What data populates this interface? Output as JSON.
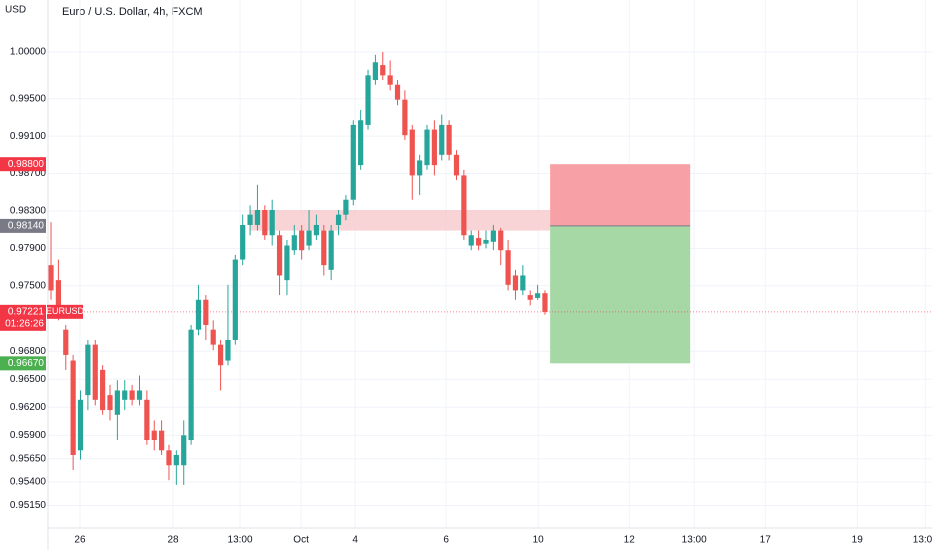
{
  "chart_data": {
    "type": "candlestick",
    "title": "Euro / U.S. Dollar, 4h, FXCM",
    "currency": "USD",
    "up_color": "#26a69a",
    "down_color": "#ef5350",
    "grid": true,
    "ylim": [
      0.94909,
      1.00556
    ],
    "yticks": [
      {
        "value": 1.0,
        "label": "1.00000"
      },
      {
        "value": 0.995,
        "label": "0.99500"
      },
      {
        "value": 0.991,
        "label": "0.99100"
      },
      {
        "value": 0.987,
        "label": "0.98700"
      },
      {
        "value": 0.983,
        "label": "0.98300"
      },
      {
        "value": 0.979,
        "label": "0.97900"
      },
      {
        "value": 0.975,
        "label": "0.97500"
      },
      {
        "value": 0.968,
        "label": "0.96800"
      },
      {
        "value": 0.965,
        "label": "0.96500"
      },
      {
        "value": 0.962,
        "label": "0.96200"
      },
      {
        "value": 0.959,
        "label": "0.95900"
      },
      {
        "value": 0.9565,
        "label": "0.95650"
      },
      {
        "value": 0.954,
        "label": "0.95400"
      },
      {
        "value": 0.9515,
        "label": "0.95150"
      }
    ],
    "xlim": [
      -0.41,
      119.5
    ],
    "xticks": [
      {
        "value": 3.93,
        "label": "26"
      },
      {
        "value": 16.55,
        "label": "28"
      },
      {
        "value": 25.64,
        "label": "13:00"
      },
      {
        "value": 33.92,
        "label": "Oct"
      },
      {
        "value": 41.25,
        "label": "4"
      },
      {
        "value": 53.59,
        "label": "6"
      },
      {
        "value": 66.08,
        "label": "10"
      },
      {
        "value": 78.43,
        "label": "12"
      },
      {
        "value": 87.24,
        "label": "13:00"
      },
      {
        "value": 96.88,
        "label": "17"
      },
      {
        "value": 109.36,
        "label": "19"
      },
      {
        "value": 118.59,
        "label": "13:00"
      }
    ],
    "open": [
      0.9772,
      0.9756,
      0.9703,
      0.967,
      0.9574,
      0.9633,
      0.9687,
      0.966,
      0.9633,
      0.9612,
      0.9628,
      0.9638,
      0.9628,
      0.9628,
      0.9595,
      0.9595,
      0.9574,
      0.9558,
      0.9558,
      0.9585,
      0.9703,
      0.9735,
      0.9703,
      0.9687,
      0.967,
      0.9692,
      0.9778,
      0.9815,
      0.9815,
      0.9831,
      0.9804,
      0.9804,
      0.9756,
      0.9788,
      0.9809,
      0.9793,
      0.9804,
      0.9809,
      0.9767,
      0.9815,
      0.9826,
      0.9842,
      0.9879,
      0.9922,
      0.997,
      0.9986,
      0.9975,
      0.9965,
      0.9949,
      0.9917,
      0.9868,
      0.9879,
      0.9917,
      0.989,
      0.9922,
      0.989,
      0.9868,
      0.9793,
      0.9801,
      0.9795,
      0.9797,
      0.9809,
      0.9788,
      0.9761,
      0.9745,
      0.974,
      0.9737,
      0.9742
    ],
    "high": [
      0.9818,
      0.9778,
      0.9708,
      0.9676,
      0.9638,
      0.9692,
      0.9692,
      0.9665,
      0.9644,
      0.9649,
      0.9649,
      0.9644,
      0.9654,
      0.9638,
      0.9606,
      0.9606,
      0.958,
      0.9574,
      0.9606,
      0.9708,
      0.9751,
      0.974,
      0.9713,
      0.9692,
      0.9751,
      0.9783,
      0.9826,
      0.9836,
      0.9858,
      0.9836,
      0.9842,
      0.9809,
      0.9799,
      0.9815,
      0.9815,
      0.9831,
      0.9826,
      0.9815,
      0.9815,
      0.9831,
      0.9847,
      0.9927,
      0.9938,
      0.9981,
      0.9997,
      1.0,
      0.9991,
      0.997,
      0.9959,
      0.9922,
      0.989,
      0.9922,
      0.9927,
      0.9933,
      0.9927,
      0.9895,
      0.9874,
      0.9809,
      0.9809,
      0.9809,
      0.9815,
      0.9812,
      0.9799,
      0.9767,
      0.9772,
      0.9745,
      0.9751,
      0.9745
    ],
    "low": [
      0.9735,
      0.9713,
      0.966,
      0.9553,
      0.9564,
      0.9617,
      0.9622,
      0.9612,
      0.9606,
      0.9585,
      0.9617,
      0.9622,
      0.9622,
      0.958,
      0.9574,
      0.9569,
      0.9542,
      0.9537,
      0.9537,
      0.958,
      0.9697,
      0.9692,
      0.9681,
      0.9638,
      0.9665,
      0.9687,
      0.9772,
      0.9804,
      0.9809,
      0.9799,
      0.9793,
      0.974,
      0.974,
      0.9783,
      0.9778,
      0.9788,
      0.9799,
      0.9761,
      0.9756,
      0.9804,
      0.982,
      0.9836,
      0.9874,
      0.9917,
      0.9965,
      0.997,
      0.9959,
      0.9943,
      0.9906,
      0.9842,
      0.9847,
      0.9874,
      0.9868,
      0.9884,
      0.9884,
      0.9863,
      0.9799,
      0.9788,
      0.9788,
      0.979,
      0.9788,
      0.9772,
      0.9745,
      0.9735,
      0.974,
      0.9729,
      0.9735,
      0.9719
    ],
    "close": [
      0.9745,
      0.9729,
      0.9676,
      0.9569,
      0.9628,
      0.9687,
      0.9628,
      0.9617,
      0.9617,
      0.9638,
      0.9638,
      0.9628,
      0.9638,
      0.9585,
      0.9585,
      0.9574,
      0.9558,
      0.9569,
      0.959,
      0.9703,
      0.9735,
      0.9708,
      0.9687,
      0.9665,
      0.9692,
      0.9778,
      0.9815,
      0.9826,
      0.9831,
      0.9804,
      0.9831,
      0.9761,
      0.9793,
      0.9804,
      0.9788,
      0.9809,
      0.9815,
      0.9772,
      0.9809,
      0.9826,
      0.9842,
      0.9922,
      0.9927,
      0.9975,
      0.9989,
      0.9975,
      0.9965,
      0.9949,
      0.9911,
      0.9868,
      0.9884,
      0.9917,
      0.9879,
      0.9922,
      0.989,
      0.9868,
      0.9804,
      0.9804,
      0.9793,
      0.9799,
      0.9809,
      0.9788,
      0.9751,
      0.9745,
      0.9761,
      0.9735,
      0.9742,
      0.9722
    ],
    "zone": {
      "low": 0.9809,
      "high": 0.9831,
      "start": 27,
      "end": 67.7,
      "color": "#f7c9cc"
    },
    "position": {
      "start": 67.7,
      "end": 86.7,
      "stop": {
        "value": 0.988,
        "label": "0.98800",
        "color": "#f7a1a6",
        "tag_color": "#f23645"
      },
      "entry": {
        "value": 0.9814,
        "label": "0.98140",
        "tag_color": "#787b86"
      },
      "target": {
        "value": 0.9667,
        "label": "0.96670",
        "color": "#a5d8a5",
        "tag_color": "#4caf50"
      }
    },
    "last": {
      "value": 0.97221,
      "label": "0.97221",
      "symbol": "EURUSD",
      "countdown": "01:26:26",
      "color": "#f23645"
    }
  }
}
